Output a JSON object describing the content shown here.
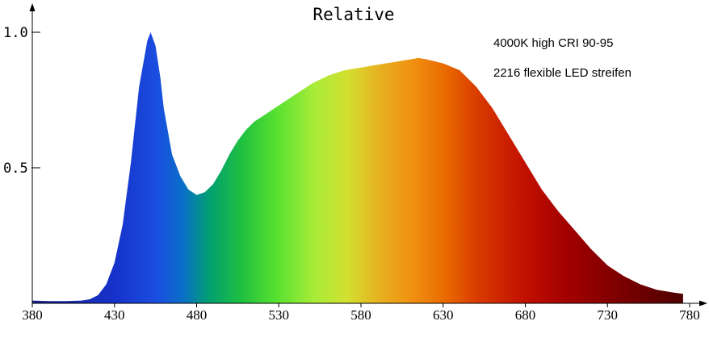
{
  "chart_data": {
    "type": "area",
    "title": "Relative",
    "xlabel": "",
    "ylabel": "",
    "annotations": [
      "4000K high CRI 90-95",
      "2216 flexible LED streifen"
    ],
    "x_ticks": [
      380,
      430,
      480,
      530,
      580,
      630,
      680,
      730,
      780
    ],
    "y_ticks": [
      {
        "value": 0.5,
        "label": "0.5"
      },
      {
        "value": 1.0,
        "label": "1.0"
      }
    ],
    "xlim": [
      380,
      782
    ],
    "ylim": [
      0,
      1.05
    ],
    "grid": false,
    "fill": "wavelength spectrum colors",
    "x": [
      380,
      390,
      400,
      410,
      415,
      420,
      425,
      430,
      435,
      440,
      445,
      450,
      452,
      455,
      458,
      460,
      465,
      470,
      475,
      480,
      485,
      490,
      495,
      500,
      505,
      510,
      515,
      520,
      530,
      540,
      550,
      560,
      570,
      580,
      590,
      600,
      610,
      615,
      620,
      630,
      640,
      650,
      660,
      670,
      680,
      690,
      700,
      710,
      720,
      730,
      740,
      750,
      760,
      770,
      776
    ],
    "y": [
      0.01,
      0.008,
      0.008,
      0.01,
      0.015,
      0.03,
      0.07,
      0.15,
      0.29,
      0.52,
      0.8,
      0.97,
      1.0,
      0.95,
      0.83,
      0.72,
      0.55,
      0.47,
      0.42,
      0.4,
      0.41,
      0.44,
      0.49,
      0.55,
      0.6,
      0.64,
      0.67,
      0.69,
      0.73,
      0.77,
      0.81,
      0.84,
      0.86,
      0.87,
      0.88,
      0.89,
      0.9,
      0.905,
      0.9,
      0.885,
      0.86,
      0.8,
      0.72,
      0.62,
      0.52,
      0.42,
      0.34,
      0.27,
      0.2,
      0.14,
      0.1,
      0.07,
      0.05,
      0.04,
      0.035
    ]
  }
}
